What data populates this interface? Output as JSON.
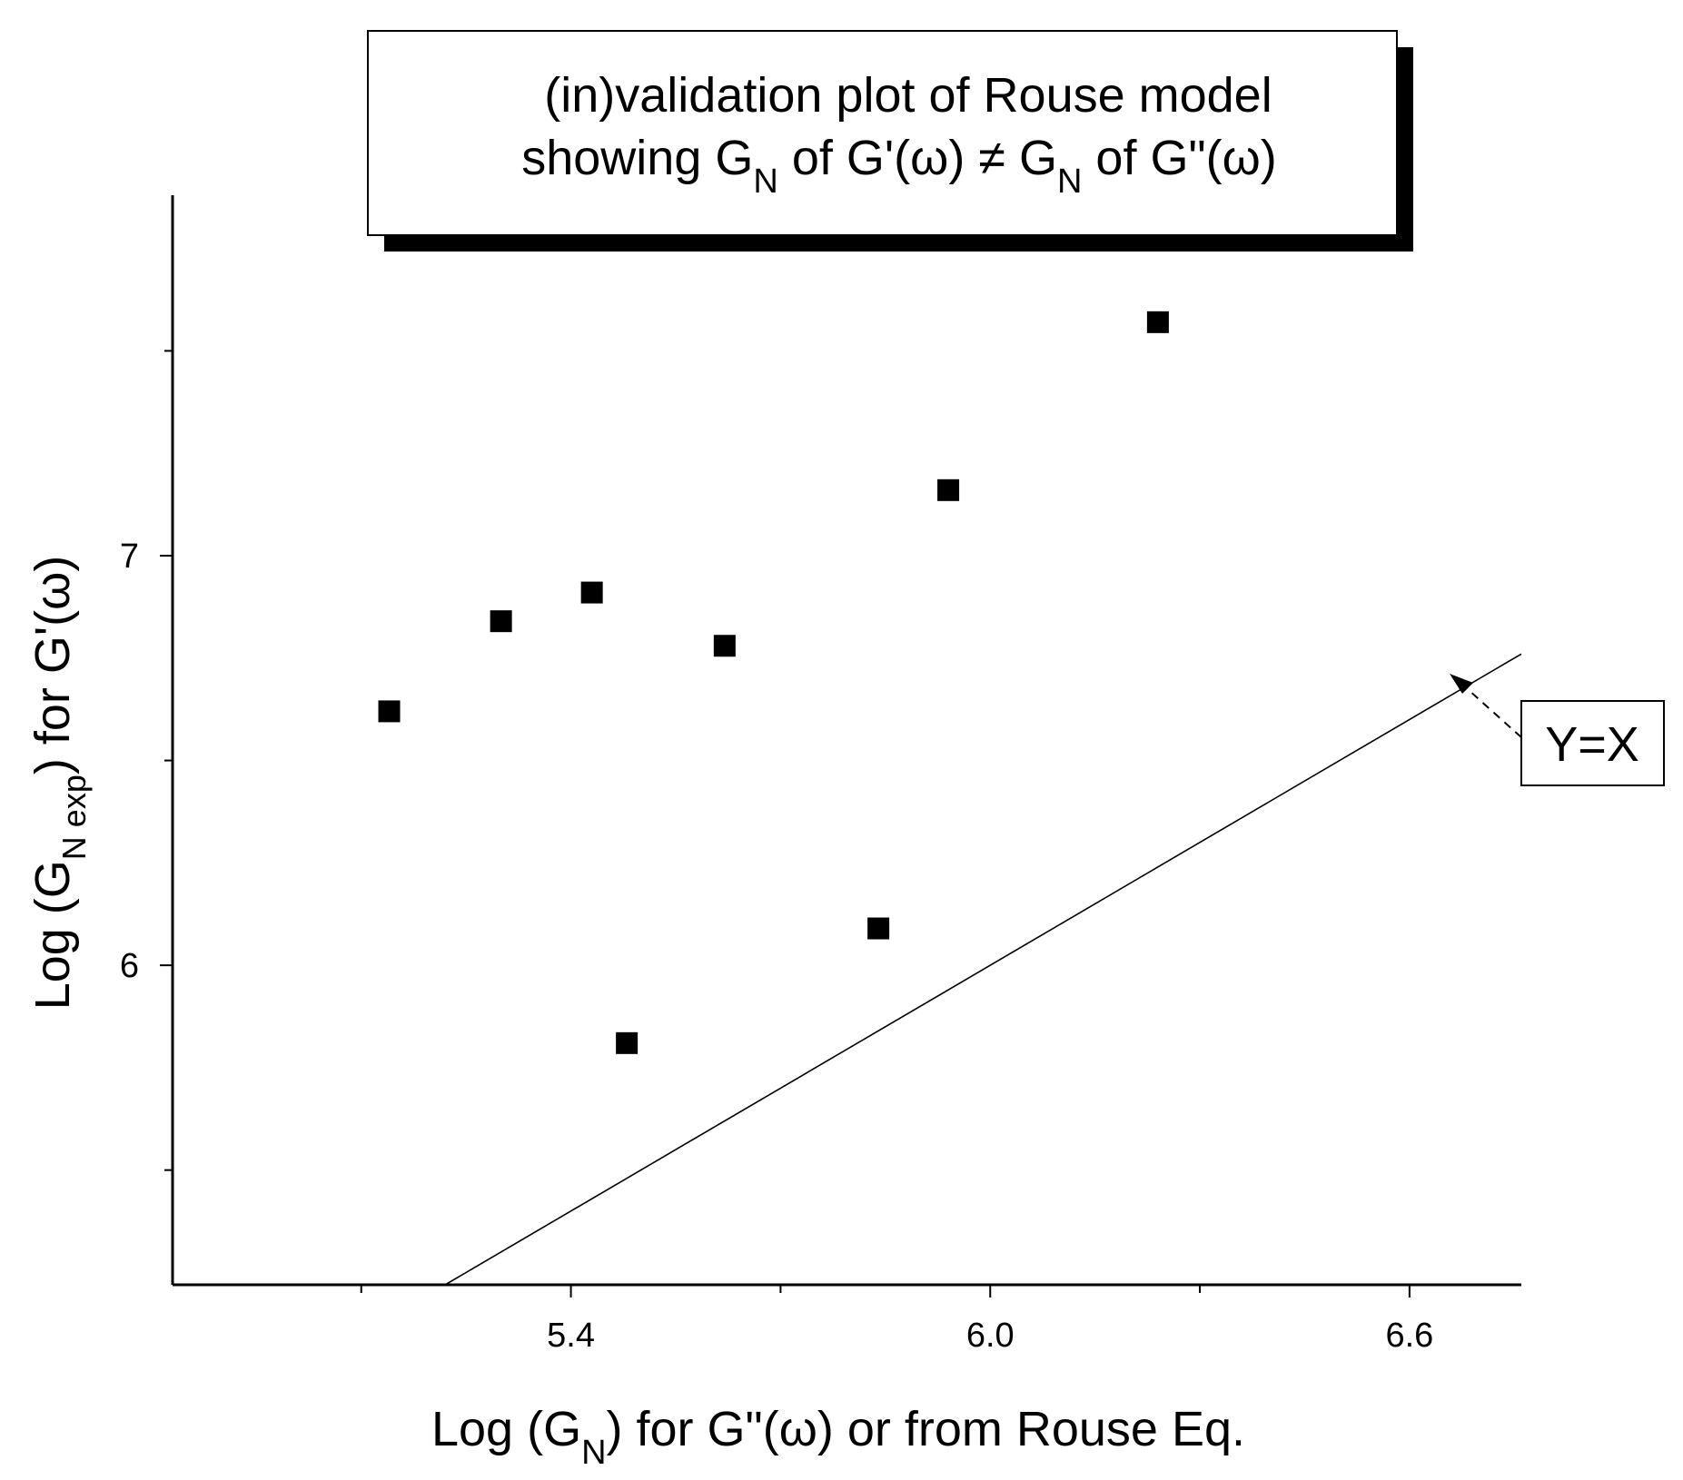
{
  "chart_data": {
    "type": "scatter",
    "title_lines": [
      [
        "(in)validation plot of  Rouse model"
      ],
      [
        "showing G",
        "N",
        " of G'(ω)  ≠  G",
        "N",
        " of G\"(ω)"
      ]
    ],
    "xlabel": [
      "Log (G",
      "N",
      ")  for G\"(ω)  or from Rouse Eq."
    ],
    "ylabel": [
      "Log (G",
      "N exp",
      ") for G'(ω)"
    ],
    "xlim": [
      4.83,
      6.76
    ],
    "ylim": [
      5.22,
      7.88
    ],
    "x_ticks_major": [
      5.4,
      6.0,
      6.6
    ],
    "x_tick_labels": [
      "5.4",
      "6.0",
      "6.6"
    ],
    "x_ticks_minor": [
      5.1,
      5.7,
      6.3
    ],
    "y_ticks_major": [
      6,
      7
    ],
    "y_tick_labels": [
      "6",
      "7"
    ],
    "y_ticks_minor": [
      5.5,
      6.5,
      7.5
    ],
    "series": [
      {
        "marker": "square",
        "x": [
          5.14,
          5.3,
          5.43,
          5.48,
          5.62,
          5.84,
          5.94,
          6.24
        ],
        "y": [
          6.62,
          6.84,
          6.91,
          5.81,
          6.78,
          6.09,
          7.16,
          7.57
        ]
      }
    ],
    "reference_line": {
      "slope": 1,
      "intercept": 0,
      "label": "Y=X"
    },
    "grid": false,
    "legend_position": "top-center"
  },
  "colors": {
    "ink": "#000000",
    "background": "#ffffff",
    "title_shadow": "#000000"
  }
}
